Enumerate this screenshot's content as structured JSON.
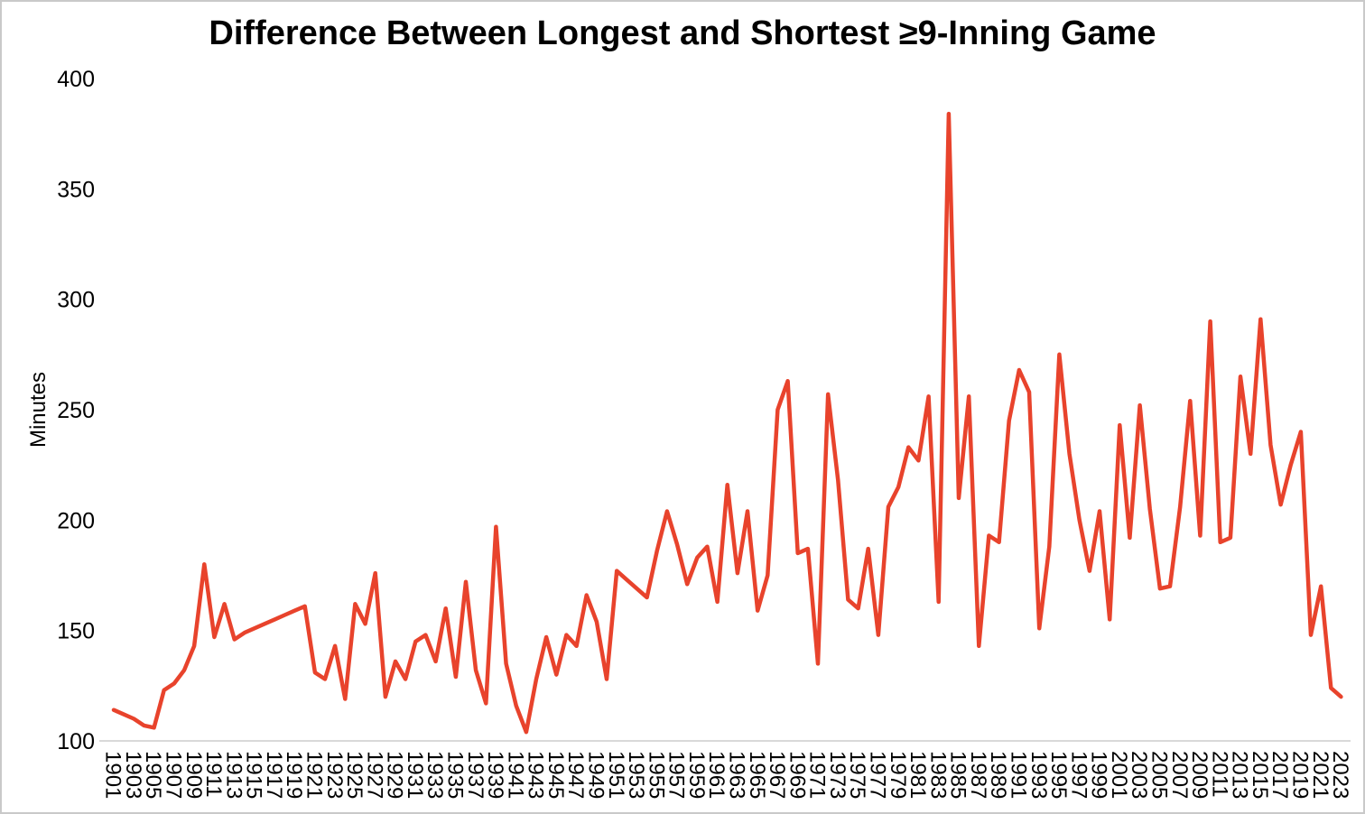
{
  "frame": {
    "background": "#ffffff",
    "border_color": "#c9c9c9"
  },
  "chart_data": {
    "type": "line",
    "title": "Difference Between Longest and Shortest ≥9-Inning Game",
    "ylabel": "Minutes",
    "xlabel": "",
    "ylim": [
      100,
      400
    ],
    "yticks": [
      400,
      350,
      300,
      250,
      200,
      150,
      100
    ],
    "grid": false,
    "legend": false,
    "x_tick_rotation_deg": 90,
    "axis_line_color": "#d9d9d9",
    "line_color": "#e8432c",
    "xticks": [
      1901,
      1903,
      1905,
      1907,
      1909,
      1911,
      1913,
      1915,
      1917,
      1919,
      1921,
      1923,
      1925,
      1927,
      1929,
      1931,
      1933,
      1935,
      1937,
      1939,
      1941,
      1943,
      1945,
      1947,
      1949,
      1951,
      1953,
      1955,
      1957,
      1959,
      1961,
      1963,
      1965,
      1967,
      1969,
      1971,
      1973,
      1975,
      1977,
      1979,
      1981,
      1983,
      1985,
      1987,
      1989,
      1991,
      1993,
      1995,
      1997,
      1999,
      2001,
      2003,
      2005,
      2007,
      2009,
      2011,
      2013,
      2015,
      2017,
      2019,
      2021,
      2023
    ],
    "series": [
      {
        "name": "longest-minus-shortest-minutes",
        "year_start": 1901,
        "year_end": 2023,
        "values": [
          114,
          112,
          110,
          107,
          106,
          123,
          126,
          132,
          143,
          180,
          147,
          162,
          146,
          149,
          151,
          153,
          155,
          157,
          159,
          161,
          131,
          128,
          143,
          119,
          162,
          153,
          176,
          120,
          136,
          128,
          145,
          148,
          136,
          160,
          129,
          172,
          132,
          117,
          197,
          135,
          116,
          104,
          128,
          147,
          130,
          148,
          143,
          166,
          154,
          128,
          177,
          173,
          169,
          165,
          186,
          204,
          189,
          171,
          183,
          188,
          163,
          216,
          176,
          204,
          159,
          175,
          250,
          263,
          185,
          187,
          135,
          257,
          218,
          164,
          160,
          187,
          148,
          206,
          215,
          233,
          227,
          256,
          163,
          384,
          210,
          256,
          143,
          193,
          190,
          245,
          268,
          258,
          151,
          188,
          275,
          230,
          200,
          177,
          204,
          155,
          243,
          192,
          252,
          205,
          169,
          170,
          206,
          254,
          193,
          290,
          190,
          192,
          265,
          230,
          291,
          234,
          207,
          225,
          240,
          148,
          170,
          124,
          120
        ]
      }
    ]
  }
}
